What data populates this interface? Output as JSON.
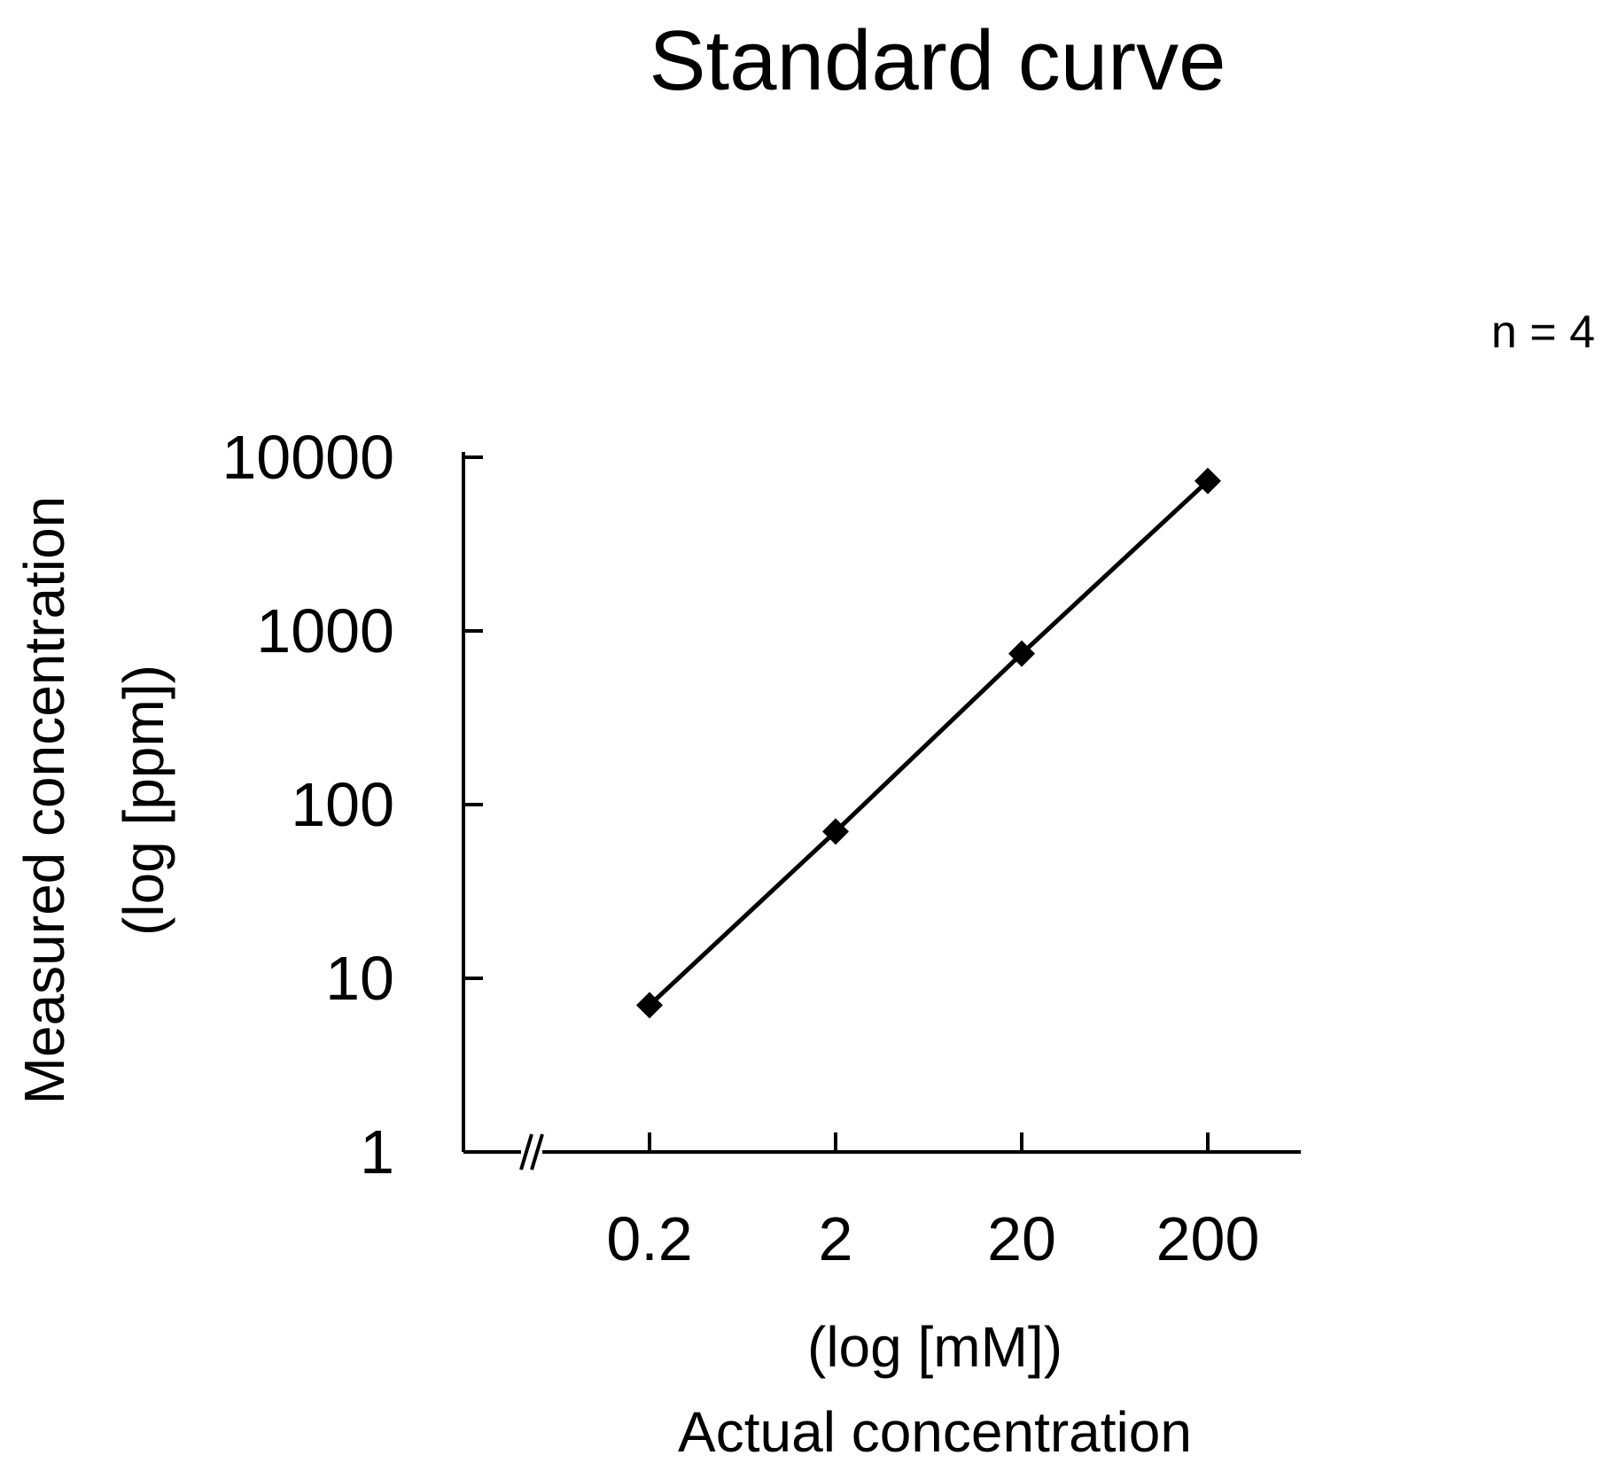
{
  "chart_data": {
    "type": "line",
    "title": "Standard curve",
    "annotation": "n = 4",
    "ylabel_line1": "Measured concentration",
    "ylabel_line2": "(log [ppm])",
    "xlabel_line1": "(log [mM])",
    "xlabel_line2": "Actual concentration",
    "x_scale": "log",
    "y_scale": "log",
    "x_ticks": [
      0.2,
      2,
      20,
      200
    ],
    "x_tick_labels": [
      "0.2",
      "2",
      "20",
      "200"
    ],
    "y_ticks": [
      1,
      10,
      100,
      1000,
      10000
    ],
    "y_tick_labels": [
      "1",
      "10",
      "100",
      "1000",
      "10000"
    ],
    "ylim": [
      1,
      10000
    ],
    "x_axis_break": true,
    "grid": false,
    "series": [
      {
        "marker": "diamond",
        "color": "#000000",
        "x": [
          0.2,
          2,
          20,
          200
        ],
        "y": [
          7,
          70,
          740,
          7300
        ]
      }
    ]
  }
}
